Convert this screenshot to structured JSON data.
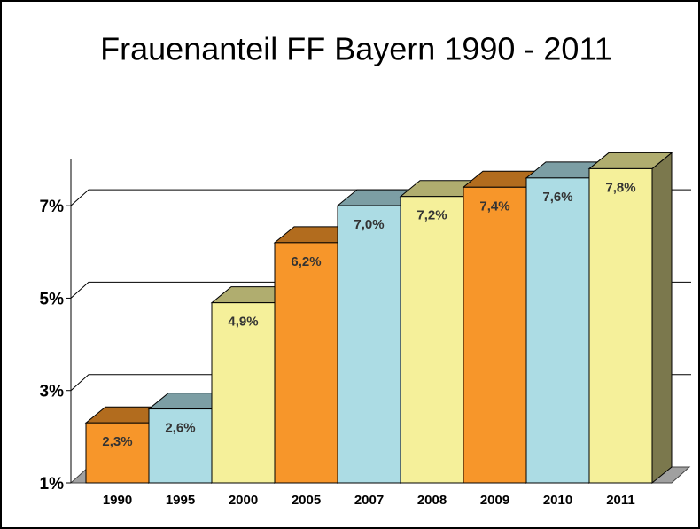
{
  "chart_data": {
    "type": "bar3d",
    "title": "Frauenanteil FF Bayern 1990 - 2011",
    "categories": [
      "1990",
      "1995",
      "2000",
      "2005",
      "2007",
      "2008",
      "2009",
      "2010",
      "2011"
    ],
    "values": [
      2.3,
      2.6,
      4.9,
      6.2,
      7.0,
      7.2,
      7.4,
      7.6,
      7.8
    ],
    "value_labels": [
      "2,3%",
      "2,6%",
      "4,9%",
      "6,2%",
      "7,0%",
      "7,2%",
      "7,4%",
      "7,6%",
      "7,8%"
    ],
    "colors": [
      "#f7962a",
      "#acdce4",
      "#f5f09a",
      "#f7962a",
      "#acdce4",
      "#f5f09a",
      "#f7962a",
      "#acdce4",
      "#f5f09a"
    ],
    "ylim": [
      1,
      8
    ],
    "yticks": [
      {
        "value": 1,
        "label": "1%"
      },
      {
        "value": 3,
        "label": "3%"
      },
      {
        "value": 5,
        "label": "5%"
      },
      {
        "value": 7,
        "label": "7%"
      }
    ],
    "grid": true
  }
}
